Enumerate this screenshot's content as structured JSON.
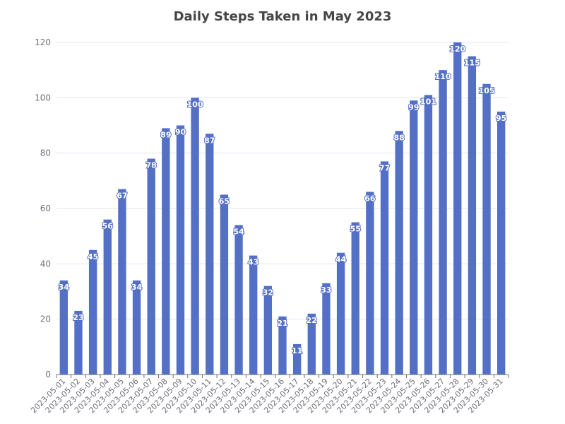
{
  "chart_data": {
    "type": "bar",
    "title": "Daily Steps Taken in May 2023",
    "xlabel": "",
    "ylabel": "",
    "ylim": [
      0,
      120
    ],
    "yticks": [
      0,
      20,
      40,
      60,
      80,
      100,
      120
    ],
    "grid": true,
    "bar_color": "#5470c6",
    "categories": [
      "2023-05-01",
      "2023-05-02",
      "2023-05-03",
      "2023-05-04",
      "2023-05-05",
      "2023-05-06",
      "2023-05-07",
      "2023-05-08",
      "2023-05-09",
      "2023-05-10",
      "2023-05-11",
      "2023-05-12",
      "2023-05-13",
      "2023-05-14",
      "2023-05-15",
      "2023-05-16",
      "2023-05-17",
      "2023-05-18",
      "2023-05-19",
      "2023-05-20",
      "2023-05-21",
      "2023-05-22",
      "2023-05-23",
      "2023-05-24",
      "2023-05-25",
      "2023-05-26",
      "2023-05-27",
      "2023-05-28",
      "2023-05-29",
      "2023-05-30",
      "2023-05-31"
    ],
    "values": [
      34,
      23,
      45,
      56,
      67,
      34,
      78,
      89,
      90,
      100,
      87,
      65,
      54,
      43,
      32,
      21,
      11,
      22,
      33,
      44,
      55,
      66,
      77,
      88,
      99,
      101,
      110,
      120,
      115,
      105,
      95
    ]
  }
}
